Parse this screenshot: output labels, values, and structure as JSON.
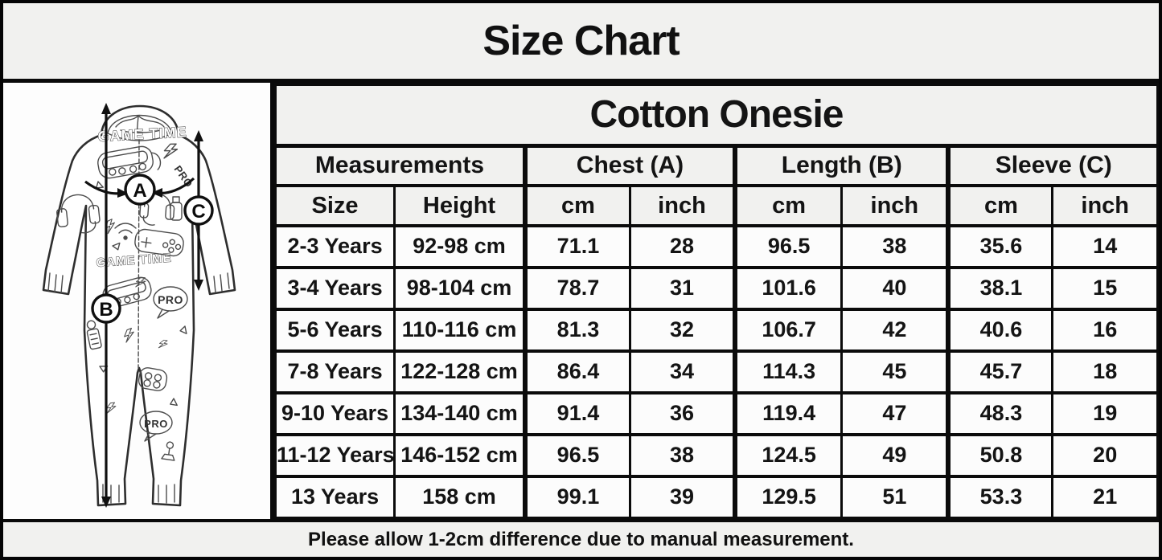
{
  "title": "Size Chart",
  "table": {
    "product_header": "Cotton Onesie",
    "group_headers": [
      "Measurements",
      "Chest (A)",
      "Length (B)",
      "Sleeve (C)"
    ],
    "sub_headers": [
      "Size",
      "Height",
      "cm",
      "inch",
      "cm",
      "inch",
      "cm",
      "inch"
    ],
    "rows": [
      [
        "2-3 Years",
        "92-98 cm",
        "71.1",
        "28",
        "96.5",
        "38",
        "35.6",
        "14"
      ],
      [
        "3-4 Years",
        "98-104 cm",
        "78.7",
        "31",
        "101.6",
        "40",
        "38.1",
        "15"
      ],
      [
        "5-6 Years",
        "110-116 cm",
        "81.3",
        "32",
        "106.7",
        "42",
        "40.6",
        "16"
      ],
      [
        "7-8 Years",
        "122-128 cm",
        "86.4",
        "34",
        "114.3",
        "45",
        "45.7",
        "18"
      ],
      [
        "9-10 Years",
        "134-140 cm",
        "91.4",
        "36",
        "119.4",
        "47",
        "48.3",
        "19"
      ],
      [
        "11-12 Years",
        "146-152 cm",
        "96.5",
        "38",
        "124.5",
        "49",
        "50.8",
        "20"
      ],
      [
        "13 Years",
        "158 cm",
        "99.1",
        "39",
        "129.5",
        "51",
        "53.3",
        "21"
      ]
    ]
  },
  "footer": {
    "note": "Please allow 1-2cm difference due to manual measurement."
  },
  "illustration": {
    "alt": "line drawing of a kids hooded gaming-print onesie with measurement markers",
    "marker_a": "A",
    "marker_b": "B",
    "marker_c": "C",
    "pattern_text_1": "GAME TIME",
    "pattern_text_2": "GAME TIME",
    "pattern_pro_1": "PRO",
    "pattern_pro_2": "PRO",
    "pattern_pro_3": "PRO"
  },
  "colors": {
    "header_bg": "#f1f1ef",
    "cell_bg": "#fcfcfc",
    "border": "#0b0b0b",
    "text": "#141414"
  },
  "chart_data": {
    "type": "table",
    "title": "Size Chart",
    "subtitle": "Cotton Onesie",
    "column_groups": [
      "Measurements",
      "Chest (A)",
      "Length (B)",
      "Sleeve (C)"
    ],
    "columns": [
      "Size",
      "Height",
      "Chest (A) cm",
      "Chest (A) inch",
      "Length (B) cm",
      "Length (B) inch",
      "Sleeve (C) cm",
      "Sleeve (C) inch"
    ],
    "rows": [
      [
        "2-3 Years",
        "92-98 cm",
        71.1,
        28,
        96.5,
        38,
        35.6,
        14
      ],
      [
        "3-4 Years",
        "98-104 cm",
        78.7,
        31,
        101.6,
        40,
        38.1,
        15
      ],
      [
        "5-6 Years",
        "110-116 cm",
        81.3,
        32,
        106.7,
        42,
        40.6,
        16
      ],
      [
        "7-8 Years",
        "122-128 cm",
        86.4,
        34,
        114.3,
        45,
        45.7,
        18
      ],
      [
        "9-10 Years",
        "134-140 cm",
        91.4,
        36,
        119.4,
        47,
        48.3,
        19
      ],
      [
        "11-12 Years",
        "146-152 cm",
        96.5,
        38,
        124.5,
        49,
        50.8,
        20
      ],
      [
        "13 Years",
        "158 cm",
        99.1,
        39,
        129.5,
        51,
        53.3,
        21
      ]
    ],
    "footnote": "Please allow 1-2cm difference due to manual measurement."
  }
}
